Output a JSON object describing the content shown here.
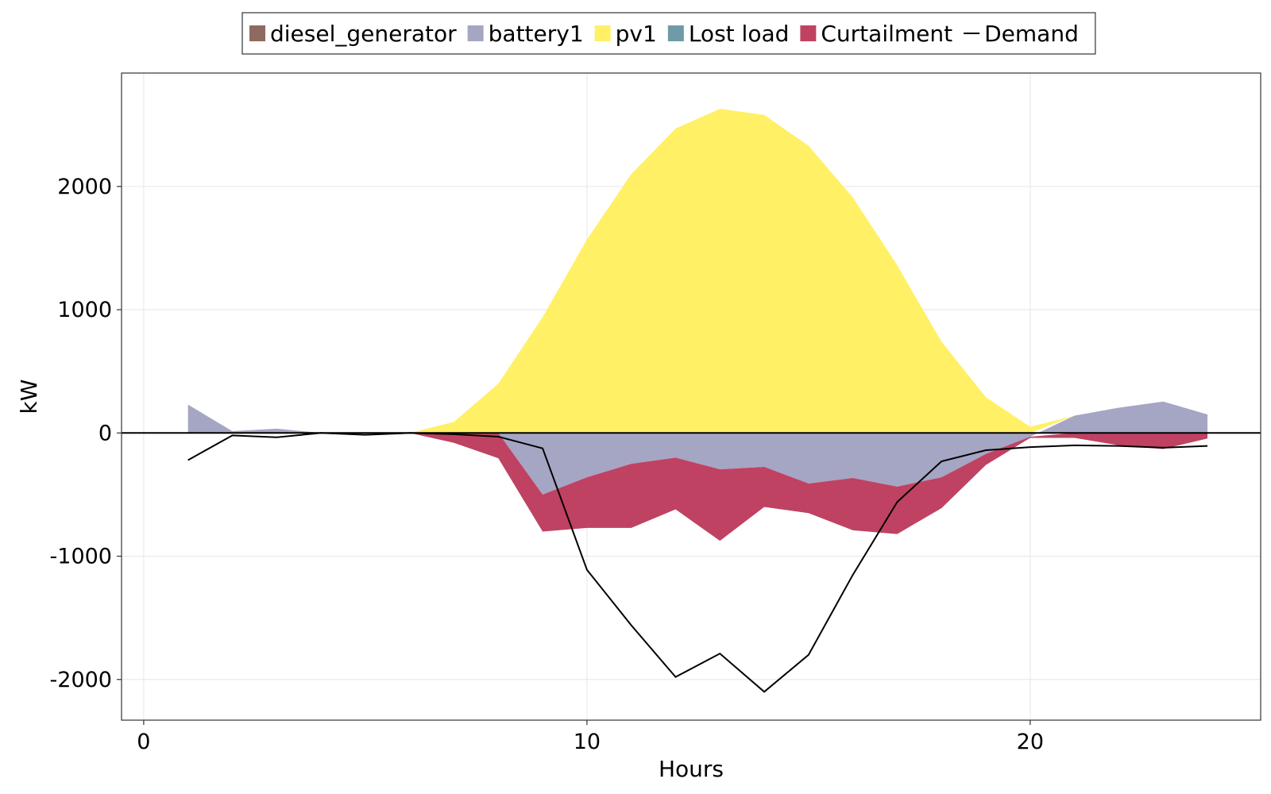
{
  "chart_data": {
    "type": "area",
    "title": "",
    "xlabel": "Hours",
    "ylabel": "kW",
    "xlim": [
      -0.5,
      25.2
    ],
    "ylim": [
      -2330,
      2920
    ],
    "xticks": [
      0,
      10,
      20
    ],
    "xtick_labels": [
      "0",
      "10",
      "20"
    ],
    "yticks": [
      -2000,
      -1000,
      0,
      1000,
      2000
    ],
    "ytick_labels": [
      "-2000",
      "-1000",
      "0",
      "1000",
      "2000"
    ],
    "grid": true,
    "legend": {
      "placement": "top-center",
      "orientation": "horizontal"
    },
    "x": [
      1,
      2,
      3,
      4,
      5,
      6,
      7,
      8,
      9,
      10,
      11,
      12,
      13,
      14,
      15,
      16,
      17,
      18,
      19,
      20,
      21,
      22,
      23,
      24
    ],
    "series": [
      {
        "name": "diesel_generator",
        "color": "#8e6a60",
        "kind": "area",
        "values": [
          0,
          0,
          0,
          0,
          0,
          0,
          0,
          0,
          0,
          0,
          0,
          0,
          0,
          0,
          0,
          0,
          0,
          0,
          0,
          0,
          0,
          0,
          0,
          0
        ]
      },
      {
        "name": "battery1",
        "color": "#a5a5c4",
        "kind": "area",
        "values": [
          230,
          15,
          35,
          0,
          0,
          0,
          0,
          0,
          -500,
          -360,
          -250,
          -200,
          -295,
          -275,
          -410,
          -365,
          -435,
          -360,
          -170,
          -30,
          140,
          205,
          255,
          150
        ]
      },
      {
        "name": "pv1",
        "color": "#fff066",
        "kind": "area",
        "values": [
          0,
          0,
          0,
          0,
          0,
          0,
          90,
          400,
          940,
          1570,
          2100,
          2470,
          2630,
          2580,
          2330,
          1910,
          1360,
          740,
          290,
          50,
          0,
          0,
          0,
          0
        ]
      },
      {
        "name": "Lost load",
        "color": "#6f9aa8",
        "kind": "area",
        "values": [
          0,
          0,
          0,
          0,
          0,
          0,
          0,
          0,
          0,
          0,
          0,
          0,
          0,
          0,
          0,
          0,
          0,
          0,
          0,
          0,
          0,
          0,
          0,
          0
        ]
      },
      {
        "name": "Curtailment",
        "color": "#bf4263",
        "kind": "area",
        "values": [
          0,
          0,
          0,
          0,
          0,
          0,
          -80,
          -205,
          -300,
          -410,
          -520,
          -420,
          -580,
          -325,
          -240,
          -425,
          -385,
          -250,
          -90,
          -10,
          -40,
          -100,
          -130,
          -45
        ]
      },
      {
        "name": "Demand",
        "color": "#000000",
        "kind": "line",
        "values": [
          -220,
          -20,
          -35,
          0,
          -15,
          0,
          -10,
          -30,
          -125,
          -1110,
          -1560,
          -1980,
          -1790,
          -2100,
          -1800,
          -1150,
          -560,
          -230,
          -140,
          -115,
          -100,
          -105,
          -120,
          -105
        ]
      }
    ]
  }
}
